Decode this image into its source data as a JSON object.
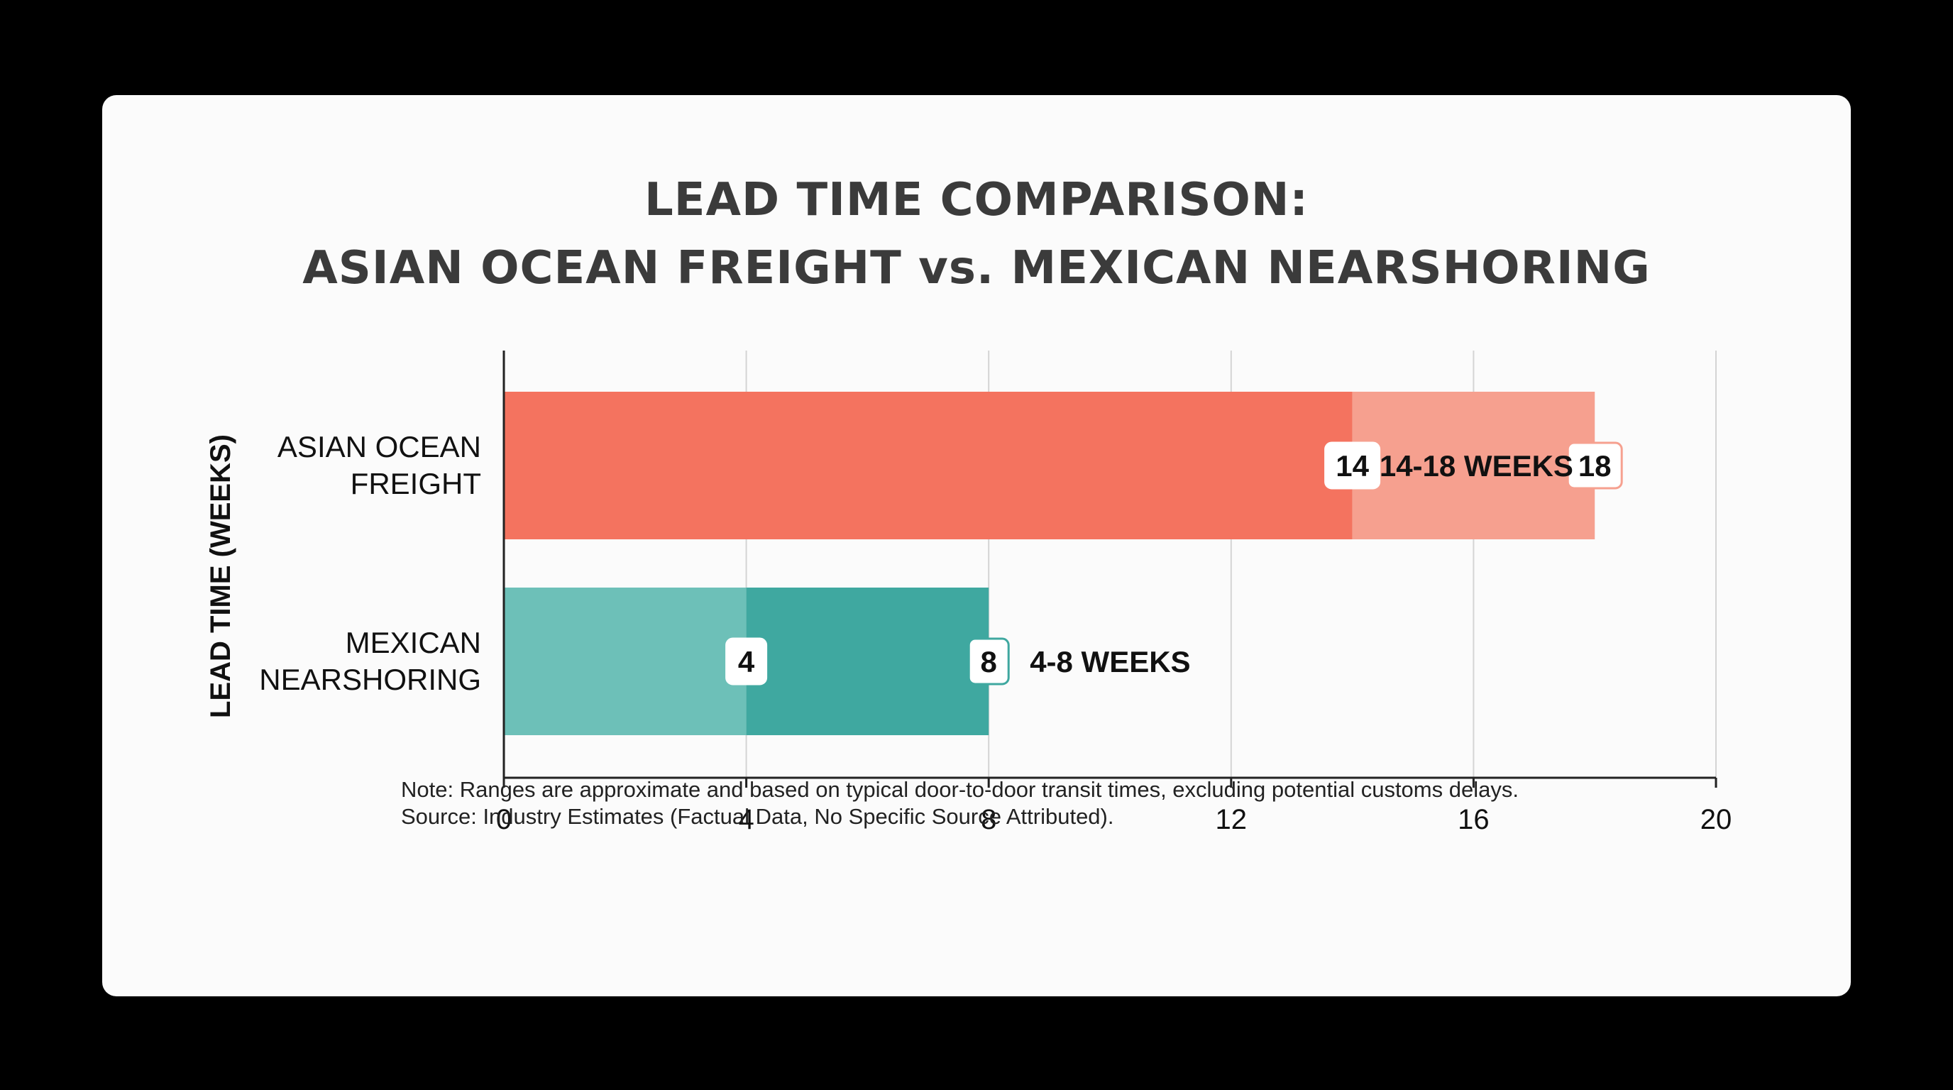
{
  "title_lines": [
    "LEAD TIME COMPARISON:",
    "ASIAN OCEAN FREIGHT vs. MEXICAN NEARSHORING"
  ],
  "note_lines": [
    "Note: Ranges are approximate and based on typical door-to-door transit times, excluding potential customs delays.",
    "Source: Industry Estimates (Factual Data, No Specific Source Attributed)."
  ],
  "chart_data": {
    "type": "bar",
    "orientation": "horizontal",
    "ylabel": "LEAD TIME (WEEKS)",
    "xlabel": "",
    "xlim": [
      0,
      20
    ],
    "x_ticks": [
      "0",
      "4",
      "8",
      "12",
      "16",
      "20"
    ],
    "x_tick_values": [
      0,
      4,
      8,
      12,
      16,
      20
    ],
    "grid": true,
    "categories": [
      {
        "label_lines": [
          "ASIAN OCEAN",
          "FREIGHT"
        ],
        "range_min": 14,
        "range_max": 18,
        "min_label": "14",
        "max_label": "18",
        "range_label": "14-18 WEEKS",
        "color": "#f4735f",
        "range_color": "#f6a08f"
      },
      {
        "label_lines": [
          "MEXICAN",
          "NEARSHORING"
        ],
        "range_min": 4,
        "range_max": 8,
        "min_label": "4",
        "max_label": "8",
        "range_label": "4-8 WEEKS",
        "color": "#6dc0b8",
        "range_color": "#3fa8a0"
      }
    ]
  }
}
